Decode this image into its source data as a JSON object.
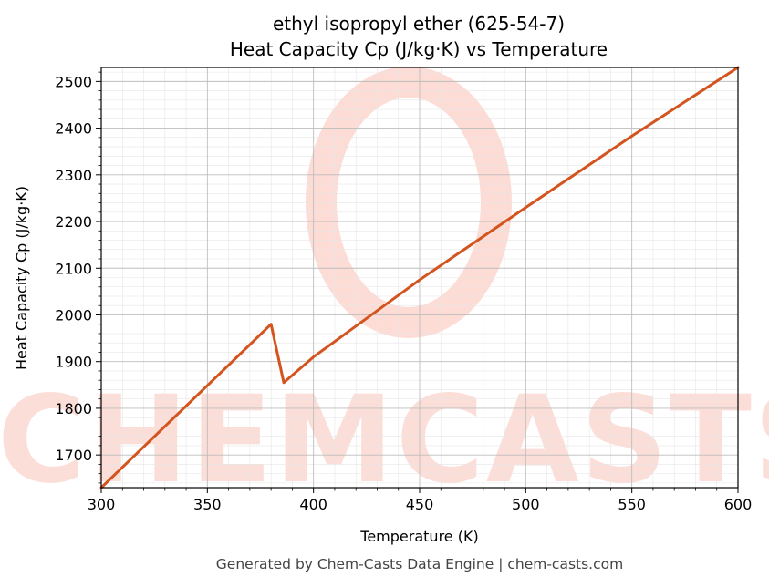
{
  "chart_data": {
    "type": "line",
    "title": "ethyl isopropyl ether (625-54-7)",
    "subtitle": "Heat Capacity Cp (J/kg·K) vs Temperature",
    "xlabel": "Temperature (K)",
    "ylabel": "Heat Capacity Cp (J/kg·K)",
    "xlim": [
      300,
      600
    ],
    "ylim": [
      1630,
      2530
    ],
    "x_ticks": [
      300,
      350,
      400,
      450,
      500,
      550,
      600
    ],
    "y_ticks": [
      1700,
      1800,
      1900,
      2000,
      2100,
      2200,
      2300,
      2400,
      2500
    ],
    "grid": true,
    "series": [
      {
        "color": "#d4541f",
        "x": [
          300,
          380,
          386,
          400,
          450,
          500,
          550,
          600
        ],
        "y": [
          1630,
          1980,
          1855,
          1910,
          2075,
          2230,
          2383,
          2530
        ]
      }
    ]
  },
  "watermark": {
    "text": "CHEMCASTS",
    "color": "#fcd3cc"
  },
  "footer": "Generated by Chem-Casts Data Engine | chem-casts.com"
}
